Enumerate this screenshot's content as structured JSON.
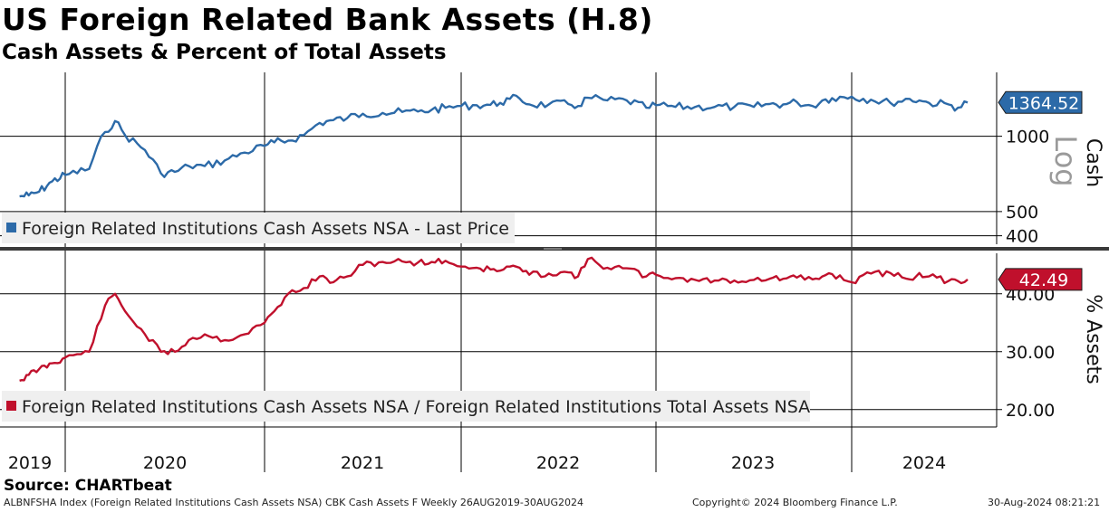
{
  "title": "US Foreign Related Bank Assets (H.8)",
  "subtitle": "Cash Assets & Percent of Total Assets",
  "source": "Source: CHARTbeat",
  "footer": {
    "left": "ALBNFSHA Index (Foreign Related Institutions Cash Assets NSA) CBK Cash Assets F  Weekly 26AUG2019-30AUG2024",
    "center": "Copyright© 2024 Bloomberg Finance L.P.",
    "right": "30-Aug-2024 08:21:21"
  },
  "colors": {
    "cash": "#2c6aa8",
    "pct": "#c0102c",
    "grid": "#000000",
    "divider": "#3a3a3a"
  },
  "chart_data": [
    {
      "type": "line",
      "panel": "top",
      "ylabel": "Cash",
      "scale": "log",
      "scale_label": "Log",
      "ylim": [
        370,
        1800
      ],
      "yticks": [
        400,
        500,
        1000
      ],
      "ytick_labels": [
        "400",
        "500",
        "1000"
      ],
      "last_value_label": "1364.52",
      "series": [
        {
          "name": "Foreign Related Institutions Cash Assets NSA - Last Price",
          "x": [
            2019.65,
            2019.72,
            2019.8,
            2019.9,
            2020.0,
            2020.12,
            2020.2,
            2020.25,
            2020.3,
            2020.4,
            2020.48,
            2020.55,
            2020.62,
            2020.7,
            2020.8,
            2020.9,
            2021.0,
            2021.05,
            2021.12,
            2021.2,
            2021.28,
            2021.35,
            2021.42,
            2021.5,
            2021.6,
            2021.7,
            2021.78,
            2021.85,
            2021.92,
            2022.0,
            2022.08,
            2022.15,
            2022.2,
            2022.25,
            2022.3,
            2022.35,
            2022.45,
            2022.55,
            2022.6,
            2022.65,
            2022.75,
            2022.85,
            2022.95,
            2023.0,
            2023.1,
            2023.2,
            2023.3,
            2023.4,
            2023.5,
            2023.58,
            2023.65,
            2023.72,
            2023.8,
            2023.85,
            2023.9,
            2024.0,
            2024.1,
            2024.2,
            2024.3,
            2024.35,
            2024.4,
            2024.5,
            2024.55,
            2024.6
          ],
          "values": [
            575,
            580,
            600,
            660,
            700,
            740,
            1040,
            1150,
            1010,
            880,
            710,
            720,
            760,
            760,
            800,
            860,
            915,
            945,
            960,
            1010,
            1130,
            1160,
            1180,
            1230,
            1240,
            1250,
            1255,
            1275,
            1300,
            1320,
            1330,
            1335,
            1360,
            1410,
            1415,
            1340,
            1340,
            1345,
            1320,
            1425,
            1390,
            1390,
            1300,
            1330,
            1310,
            1310,
            1310,
            1310,
            1310,
            1345,
            1340,
            1370,
            1320,
            1390,
            1420,
            1440,
            1400,
            1360,
            1410,
            1390,
            1360,
            1340,
            1300,
            1364.52
          ]
        }
      ]
    },
    {
      "type": "line",
      "panel": "bottom",
      "ylabel": "% Assets",
      "ylim": [
        17,
        47
      ],
      "yticks": [
        20,
        30,
        40
      ],
      "ytick_labels": [
        "20.00",
        "30.00",
        "40.00"
      ],
      "last_value_label": "42.49",
      "series": [
        {
          "name": "Foreign Related Institutions Cash Assets NSA / Foreign Related Institutions Total Assets NSA",
          "x": [
            2019.65,
            2019.72,
            2019.8,
            2019.9,
            2020.0,
            2020.12,
            2020.2,
            2020.25,
            2020.3,
            2020.4,
            2020.48,
            2020.55,
            2020.62,
            2020.7,
            2020.8,
            2020.9,
            2021.0,
            2021.05,
            2021.12,
            2021.2,
            2021.28,
            2021.35,
            2021.42,
            2021.5,
            2021.6,
            2021.7,
            2021.78,
            2021.85,
            2021.92,
            2022.0,
            2022.08,
            2022.15,
            2022.2,
            2022.25,
            2022.3,
            2022.35,
            2022.45,
            2022.55,
            2022.6,
            2022.65,
            2022.75,
            2022.85,
            2022.95,
            2023.0,
            2023.1,
            2023.2,
            2023.3,
            2023.4,
            2023.5,
            2023.58,
            2023.65,
            2023.72,
            2023.8,
            2023.85,
            2023.9,
            2024.0,
            2024.1,
            2024.2,
            2024.3,
            2024.35,
            2024.4,
            2024.5,
            2024.55,
            2024.6
          ],
          "values": [
            25,
            26,
            27,
            28,
            29,
            30,
            38,
            40,
            37,
            33,
            30,
            30,
            32,
            33,
            32,
            33,
            35,
            37,
            40,
            41,
            43,
            42,
            43,
            45,
            45.5,
            45.6,
            45.4,
            45.5,
            45.7,
            44.7,
            44.5,
            44.2,
            44.0,
            44.7,
            44.5,
            43.3,
            43.5,
            43.7,
            43.0,
            46.0,
            44.5,
            44.4,
            43.0,
            43.3,
            42.7,
            42.4,
            42.3,
            42.3,
            42.4,
            42.6,
            42.6,
            42.8,
            42.5,
            43.0,
            43.4,
            42.0,
            43.5,
            43.6,
            42.5,
            43.6,
            43.0,
            42.2,
            42.2,
            42.49
          ]
        }
      ]
    }
  ],
  "x_axis": {
    "years": [
      "2019",
      "2020",
      "2021",
      "2022",
      "2023",
      "2024"
    ]
  }
}
